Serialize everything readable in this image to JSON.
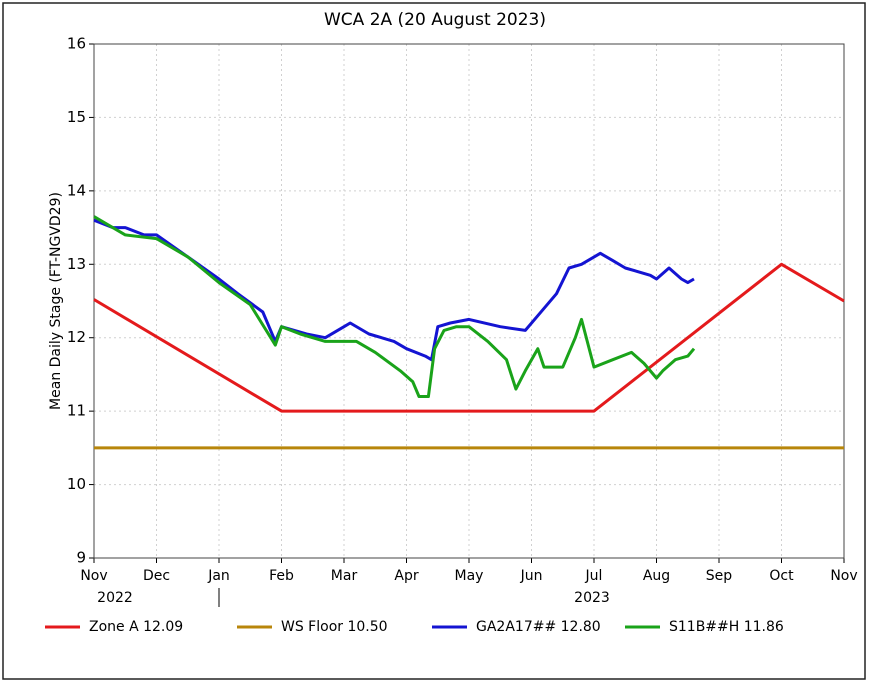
{
  "chart_data": {
    "type": "line",
    "title": "WCA 2A (20 August 2023)",
    "ylabel": "Mean Daily Stage (FT-NGVD29)",
    "year_labels": [
      "2022",
      "2023"
    ],
    "xlim": [
      0,
      12
    ],
    "xticks": [
      {
        "value": 0,
        "label": "Nov"
      },
      {
        "value": 1,
        "label": "Dec"
      },
      {
        "value": 2,
        "label": "Jan"
      },
      {
        "value": 3,
        "label": "Feb"
      },
      {
        "value": 4,
        "label": "Mar"
      },
      {
        "value": 5,
        "label": "Apr"
      },
      {
        "value": 6,
        "label": "May"
      },
      {
        "value": 7,
        "label": "Jun"
      },
      {
        "value": 8,
        "label": "Jul"
      },
      {
        "value": 9,
        "label": "Aug"
      },
      {
        "value": 10,
        "label": "Sep"
      },
      {
        "value": 11,
        "label": "Oct"
      },
      {
        "value": 12,
        "label": "Nov"
      }
    ],
    "ylim": [
      9,
      16
    ],
    "yticks": [
      9,
      10,
      11,
      12,
      13,
      14,
      15,
      16
    ],
    "grid": true,
    "legend": "bottom",
    "series": [
      {
        "name": "Zone A 12.09",
        "color": "#e41a1c",
        "x": [
          0,
          3,
          8,
          11,
          12
        ],
        "values": [
          12.52,
          11.0,
          11.0,
          13.0,
          12.5
        ]
      },
      {
        "name": "WS Floor 10.50",
        "color": "#b8860b",
        "x": [
          0,
          12
        ],
        "values": [
          10.5,
          10.5
        ]
      },
      {
        "name": "GA2A17## 12.80",
        "color": "#1414d2",
        "x": [
          0,
          0.3,
          0.5,
          0.8,
          1,
          1.5,
          2,
          2.3,
          2.7,
          2.9,
          3.0,
          3.4,
          3.7,
          4.0,
          4.1,
          4.4,
          4.8,
          5.0,
          5.3,
          5.4,
          5.5,
          5.7,
          6.0,
          6.5,
          6.9,
          7.1,
          7.4,
          7.6,
          7.8,
          8.1,
          8.3,
          8.5,
          8.9,
          9.0,
          9.2,
          9.4,
          9.5,
          9.6
        ],
        "values": [
          13.6,
          13.5,
          13.5,
          13.4,
          13.4,
          13.1,
          12.8,
          12.6,
          12.35,
          11.95,
          12.15,
          12.05,
          12.0,
          12.15,
          12.2,
          12.05,
          11.95,
          11.85,
          11.75,
          11.7,
          12.15,
          12.2,
          12.25,
          12.15,
          12.1,
          12.3,
          12.6,
          12.95,
          13.0,
          13.15,
          13.05,
          12.95,
          12.85,
          12.8,
          12.95,
          12.8,
          12.75,
          12.8
        ]
      },
      {
        "name": "S11B##H 11.86",
        "color": "#1aa31a",
        "x": [
          0,
          0.5,
          1,
          1.5,
          2,
          2.5,
          2.9,
          3.0,
          3.3,
          3.7,
          4.2,
          4.5,
          4.9,
          5.1,
          5.2,
          5.35,
          5.45,
          5.6,
          5.8,
          6.0,
          6.3,
          6.6,
          6.75,
          6.9,
          7.1,
          7.2,
          7.5,
          7.7,
          7.8,
          8.0,
          8.3,
          8.6,
          8.8,
          9.0,
          9.1,
          9.3,
          9.5,
          9.6
        ],
        "values": [
          13.65,
          13.4,
          13.35,
          13.1,
          12.75,
          12.45,
          11.9,
          12.15,
          12.05,
          11.95,
          11.95,
          11.8,
          11.55,
          11.4,
          11.2,
          11.2,
          11.85,
          12.1,
          12.15,
          12.15,
          11.95,
          11.7,
          11.3,
          11.55,
          11.85,
          11.6,
          11.6,
          12.0,
          12.25,
          11.6,
          11.7,
          11.8,
          11.65,
          11.45,
          11.55,
          11.7,
          11.75,
          11.85
        ]
      }
    ]
  }
}
